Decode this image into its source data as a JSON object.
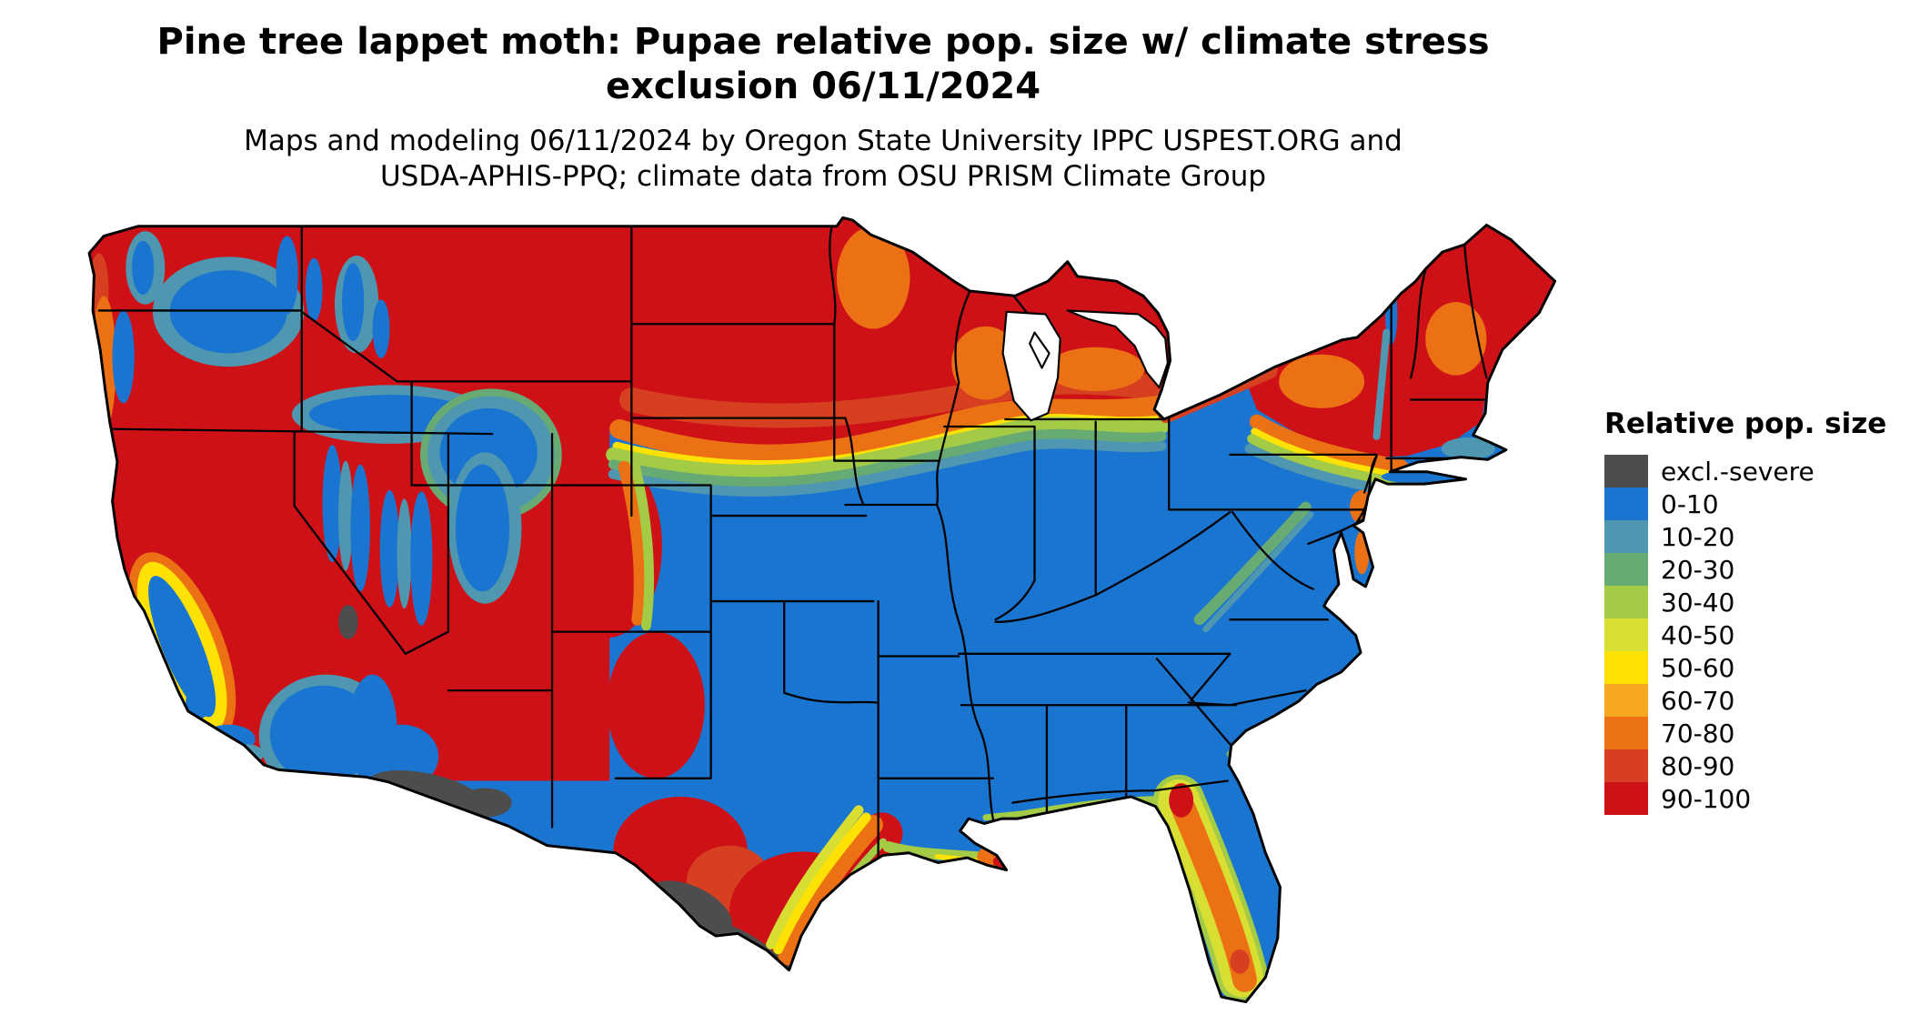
{
  "header": {
    "title_line1": "Pine tree lappet moth: Pupae relative pop. size w/ climate stress",
    "title_line2": "exclusion 06/11/2024",
    "subtitle_line1": "Maps and modeling 06/11/2024 by Oregon State University IPPC USPEST.ORG and",
    "subtitle_line2": "USDA-APHIS-PPQ; climate data from OSU PRISM Climate Group"
  },
  "map": {
    "area": "contiguous United States",
    "kind": "raster choropleth of relative population size"
  },
  "legend": {
    "title": "Relative pop. size",
    "items": [
      {
        "label": "excl.-severe",
        "color": "#4d4d4d"
      },
      {
        "label": "0-10",
        "color": "#1a75d1"
      },
      {
        "label": "10-20",
        "color": "#4f97b0"
      },
      {
        "label": "20-30",
        "color": "#68aa74"
      },
      {
        "label": "30-40",
        "color": "#a3cb46"
      },
      {
        "label": "40-50",
        "color": "#d9de32"
      },
      {
        "label": "50-60",
        "color": "#ffe203"
      },
      {
        "label": "60-70",
        "color": "#f4a71f"
      },
      {
        "label": "70-80",
        "color": "#ec7014"
      },
      {
        "label": "80-90",
        "color": "#d64020"
      },
      {
        "label": "90-100",
        "color": "#cd1117"
      }
    ]
  }
}
